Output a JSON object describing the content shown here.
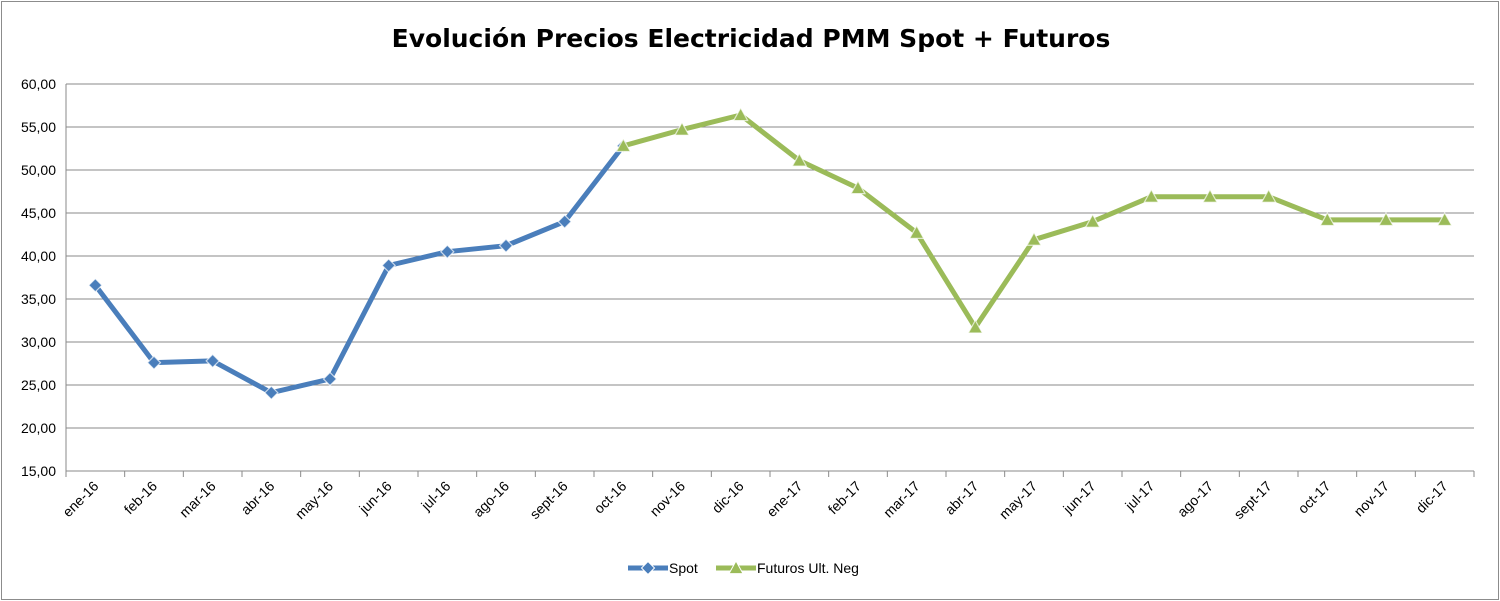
{
  "chart_data": {
    "type": "line",
    "title": "Evolución Precios Electricidad PMM Spot + Futuros",
    "xlabel": "",
    "ylabel": "",
    "ylim": [
      15,
      60
    ],
    "y_ticks": [
      "15,00",
      "20,00",
      "25,00",
      "30,00",
      "35,00",
      "40,00",
      "45,00",
      "50,00",
      "55,00",
      "60,00"
    ],
    "categories": [
      "ene-16",
      "feb-16",
      "mar-16",
      "abr-16",
      "may-16",
      "jun-16",
      "jul-16",
      "ago-16",
      "sept-16",
      "oct-16",
      "nov-16",
      "dic-16",
      "ene-17",
      "feb-17",
      "mar-17",
      "abr-17",
      "may-17",
      "jun-17",
      "jul-17",
      "ago-17",
      "sept-17",
      "oct-17",
      "nov-17",
      "dic-17"
    ],
    "grid": true,
    "legend_position": "bottom",
    "series": [
      {
        "name": "Spot",
        "color": "#4a7ebb",
        "marker": "diamond",
        "values": [
          36.6,
          27.6,
          27.8,
          24.1,
          25.7,
          38.9,
          40.5,
          41.2,
          44.0,
          52.8,
          null,
          null,
          null,
          null,
          null,
          null,
          null,
          null,
          null,
          null,
          null,
          null,
          null,
          null
        ]
      },
      {
        "name": "Futuros Ult. Neg",
        "color": "#9bbb59",
        "marker": "triangle",
        "values": [
          null,
          null,
          null,
          null,
          null,
          null,
          null,
          null,
          null,
          52.8,
          54.7,
          56.4,
          51.1,
          47.9,
          42.7,
          31.7,
          41.9,
          44.0,
          46.9,
          46.9,
          46.9,
          44.2,
          44.2,
          44.2
        ]
      }
    ]
  }
}
